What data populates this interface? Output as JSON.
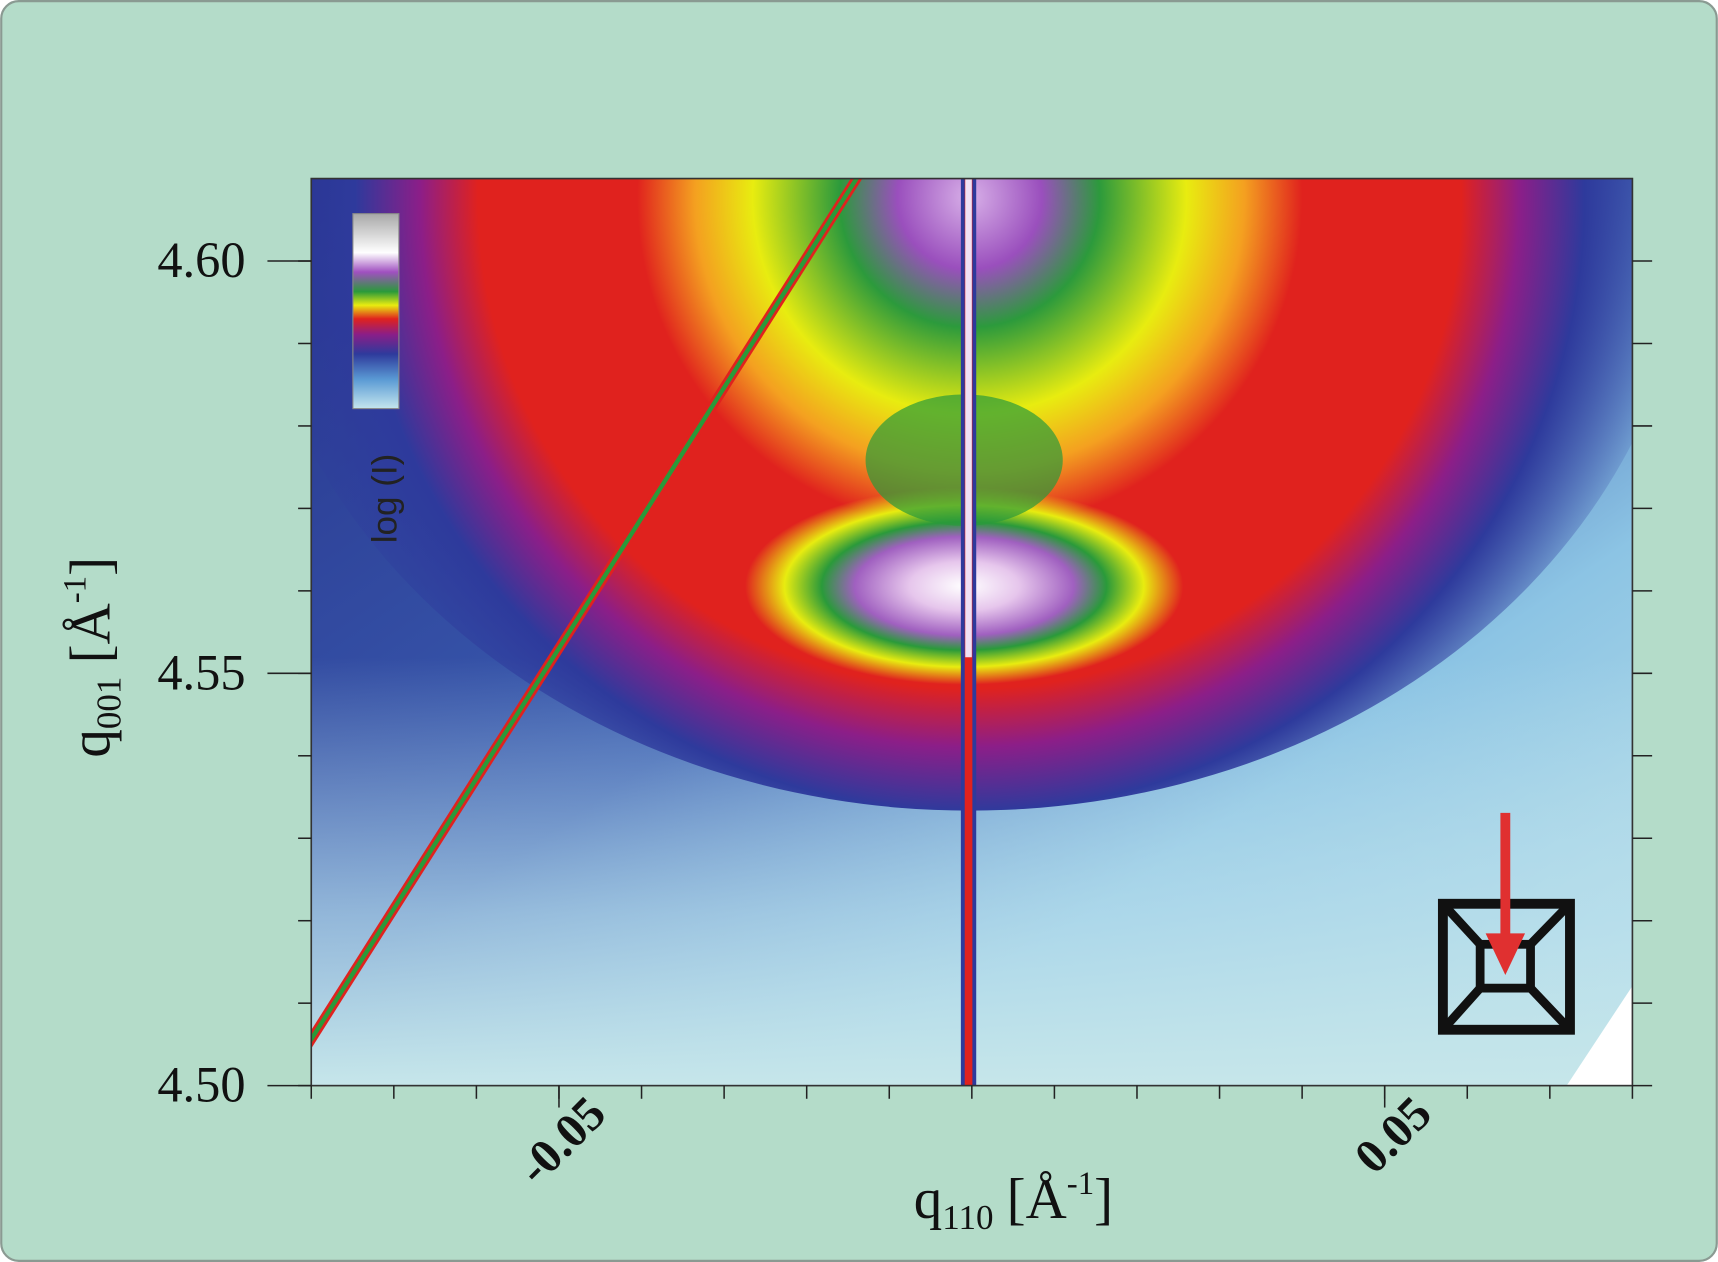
{
  "chart_data": {
    "type": "heatmap",
    "xlabel": {
      "symbol": "q",
      "subscript": "110",
      "unit": "[Å",
      "superscript": "-1",
      "close": "]"
    },
    "ylabel": {
      "symbol": "q",
      "subscript": "001",
      "unit": "[Å",
      "superscript": "-1",
      "close": "]"
    },
    "colorbar_label": "log (I)",
    "xlim": [
      -0.08,
      0.08
    ],
    "xticks": [
      -0.05,
      0.05
    ],
    "xminorticks": [
      -0.08,
      -0.07,
      -0.06,
      -0.05,
      -0.04,
      -0.03,
      -0.02,
      -0.01,
      0,
      0.01,
      0.02,
      0.03,
      0.04,
      0.05,
      0.06,
      0.07,
      0.08
    ],
    "ylim": [
      4.5,
      4.61
    ],
    "yticks": [
      {
        "value": 4.5,
        "label": "4.50"
      },
      {
        "value": 4.55,
        "label": "4.55"
      },
      {
        "value": 4.6,
        "label": "4.60"
      }
    ],
    "yminorticks": [
      4.5,
      4.51,
      4.52,
      4.53,
      4.54,
      4.55,
      4.56,
      4.57,
      4.58,
      4.59,
      4.6
    ]
  }
}
